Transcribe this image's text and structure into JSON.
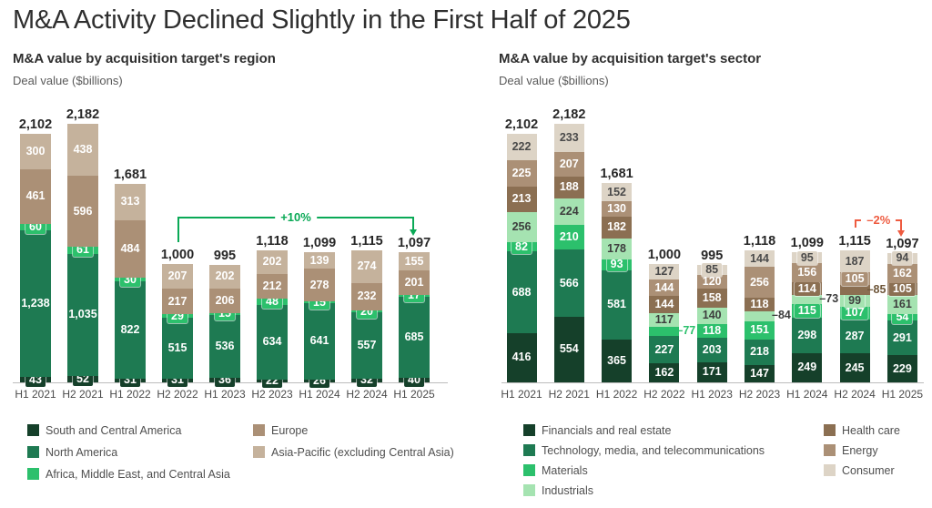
{
  "title": "M&A Activity Declined Slightly in the First Half of 2025",
  "chart_data": [
    {
      "type": "bar",
      "stacked": true,
      "title": "M&A value by acquisition target's region",
      "ylabel": "Deal value ($billions)",
      "categories": [
        "H1 2021",
        "H2 2021",
        "H1 2022",
        "H2 2022",
        "H1 2023",
        "H2 2023",
        "H1 2024",
        "H2 2024",
        "H1 2025"
      ],
      "total_labels": [
        "2,102",
        "2,182",
        "1,681",
        "1,000",
        "995",
        "1,118",
        "1,099",
        "1,115",
        "1,097"
      ],
      "series": [
        {
          "name": "South and Central America",
          "color": "#15402a",
          "label_color": "#ffffff",
          "values": [
            43,
            52,
            31,
            31,
            36,
            22,
            26,
            32,
            40
          ]
        },
        {
          "name": "North America",
          "color": "#1e7a52",
          "label_color": "#ffffff",
          "values": [
            1238,
            1035,
            822,
            515,
            536,
            634,
            641,
            557,
            685
          ]
        },
        {
          "name": "Africa, Middle East, and Central Asia",
          "color": "#2cc06c",
          "label_color": "#ffffff",
          "values": [
            60,
            61,
            30,
            29,
            15,
            48,
            15,
            20,
            17
          ]
        },
        {
          "name": "Europe",
          "color": "#ab9076",
          "label_color": "#ffffff",
          "values": [
            461,
            596,
            484,
            217,
            206,
            212,
            278,
            232,
            201
          ]
        },
        {
          "name": "Asia-Pacific (excluding Central Asia)",
          "color": "#c5b29c",
          "label_color": "#ffffff",
          "values": [
            300,
            438,
            313,
            207,
            202,
            202,
            139,
            274,
            155
          ]
        }
      ],
      "legend_columns": [
        [
          0,
          1,
          2
        ],
        [
          3,
          4
        ]
      ],
      "outside_labels": [],
      "annotation": {
        "text": "+10%",
        "color": "#0aa956",
        "from": "H2 2022",
        "to": "H1 2025"
      }
    },
    {
      "type": "bar",
      "stacked": true,
      "title": "M&A value by acquisition target's sector",
      "ylabel": "Deal value ($billions)",
      "categories": [
        "H1 2021",
        "H2 2021",
        "H1 2022",
        "H2 2022",
        "H1 2023",
        "H2 2023",
        "H1 2024",
        "H2 2024",
        "H1 2025"
      ],
      "total_labels": [
        "2,102",
        "2,182",
        "1,681",
        "1,000",
        "995",
        "1,118",
        "1,099",
        "1,115",
        "1,097"
      ],
      "series": [
        {
          "name": "Financials and real estate",
          "color": "#15402a",
          "label_color": "#ffffff",
          "values": [
            416,
            554,
            365,
            162,
            171,
            147,
            249,
            245,
            229
          ]
        },
        {
          "name": "Technology, media, and telecommunications",
          "color": "#1e7a52",
          "label_color": "#ffffff",
          "values": [
            688,
            566,
            581,
            227,
            203,
            218,
            298,
            287,
            291
          ]
        },
        {
          "name": "Materials",
          "color": "#2cc06c",
          "label_color": "#ffffff",
          "values": [
            82,
            210,
            93,
            77,
            118,
            151,
            115,
            107,
            54
          ]
        },
        {
          "name": "Industrials",
          "color": "#a5e3b1",
          "label_color": "#3d3d3d",
          "values": [
            256,
            224,
            178,
            117,
            140,
            84,
            73,
            99,
            161
          ]
        },
        {
          "name": "Health care",
          "color": "#8b6f52",
          "label_color": "#ffffff",
          "values": [
            213,
            188,
            182,
            144,
            158,
            118,
            114,
            85,
            105
          ]
        },
        {
          "name": "Energy",
          "color": "#ab9076",
          "label_color": "#ffffff",
          "values": [
            225,
            207,
            130,
            144,
            120,
            256,
            156,
            105,
            162
          ]
        },
        {
          "name": "Consumer",
          "color": "#ddd4c6",
          "label_color": "#4a4a4a",
          "values": [
            222,
            233,
            152,
            127,
            85,
            144,
            95,
            187,
            94
          ]
        }
      ],
      "legend_columns": [
        [
          0,
          1,
          2,
          3
        ],
        [
          4,
          5,
          6
        ]
      ],
      "outside_labels": [
        {
          "category": "H2 2022",
          "series": "Materials",
          "text": "–77",
          "color": "#2cc06c"
        },
        {
          "category": "H2 2023",
          "series": "Industrials",
          "text": "–84",
          "color": "#3d3d3d"
        },
        {
          "category": "H1 2024",
          "series": "Industrials",
          "text": "–73",
          "color": "#3d3d3d"
        },
        {
          "category": "H2 2024",
          "series": "Health care",
          "text": "–85",
          "color": "#6e5639"
        }
      ],
      "annotation": {
        "text": "–2%",
        "color": "#ee5b40",
        "from": "H2 2024",
        "to": "H1 2025"
      }
    }
  ]
}
